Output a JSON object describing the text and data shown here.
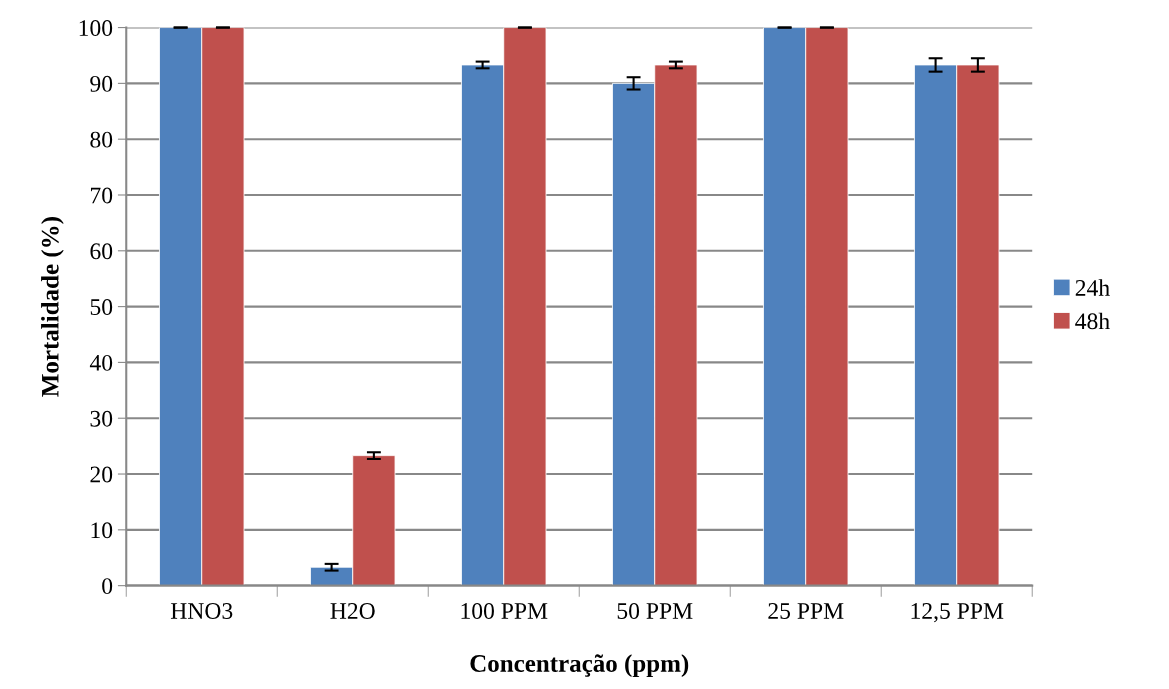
{
  "chart_data": {
    "type": "bar",
    "xlabel": "Concentração (ppm)",
    "ylabel": "Mortalidade (%)",
    "categories": [
      "HNO3",
      "H2O",
      "100 PPM",
      "50 PPM",
      "25 PPM",
      "12,5 PPM"
    ],
    "series": [
      {
        "name": "24h",
        "color": "#4f81bd",
        "values": [
          100,
          3.3,
          93.3,
          90,
          100,
          93.3
        ],
        "errors": [
          0,
          0.6,
          0.6,
          1.1,
          0,
          1.2
        ]
      },
      {
        "name": "48h",
        "color": "#c0504d",
        "values": [
          100,
          23.3,
          100,
          93.3,
          100,
          93.3
        ],
        "errors": [
          0,
          0.6,
          0,
          0.6,
          0,
          1.2
        ]
      }
    ],
    "ylim": [
      0,
      100
    ],
    "yticks": [
      0,
      10,
      20,
      30,
      40,
      50,
      60,
      70,
      80,
      90,
      100
    ],
    "grid": "y",
    "legend": "right"
  }
}
